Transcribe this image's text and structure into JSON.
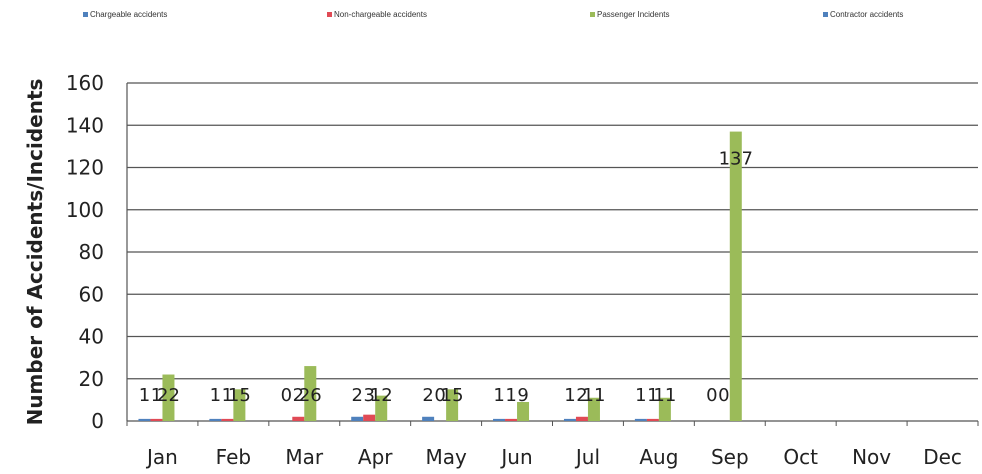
{
  "chart_data": {
    "type": "bar",
    "title": "",
    "xlabel": "",
    "ylabel": "Number of Accidents/Incidents",
    "ylim": [
      0,
      160
    ],
    "yticks": [
      0,
      20,
      40,
      60,
      80,
      100,
      120,
      140,
      160
    ],
    "grid": true,
    "legend_position": "top",
    "categories": [
      "Jan",
      "Feb",
      "Mar",
      "Apr",
      "May",
      "Jun",
      "Jul",
      "Aug",
      "Sep",
      "Oct",
      "Nov",
      "Dec"
    ],
    "series": [
      {
        "name": "Chargeable accidents",
        "color": "#4f81bd",
        "values": [
          1,
          1,
          0,
          2,
          2,
          1,
          1,
          1,
          0,
          null,
          null,
          null
        ],
        "labels": [
          "1",
          "1",
          "0",
          "2",
          "2",
          "1",
          "1",
          "1",
          "0",
          "",
          "",
          ""
        ]
      },
      {
        "name": "Non-chargeable accidents",
        "color": "#e04a55",
        "values": [
          1,
          1,
          2,
          3,
          0,
          1,
          2,
          1,
          0,
          null,
          null,
          null
        ],
        "labels": [
          "1",
          "1",
          "2",
          "3",
          "0",
          "1",
          "2",
          "1",
          "0",
          "",
          "",
          ""
        ]
      },
      {
        "name": "Passenger Incidents",
        "color": "#9bbb59",
        "values": [
          22,
          15,
          26,
          12,
          15,
          9,
          11,
          11,
          137,
          null,
          null,
          null
        ],
        "labels": [
          "22",
          "15",
          "26",
          "12",
          "15",
          "9",
          "11",
          "11",
          "137",
          "",
          "",
          ""
        ]
      },
      {
        "name": "Contractor accidents",
        "color": "#4f81bd",
        "values": [
          null,
          null,
          null,
          null,
          null,
          null,
          null,
          null,
          null,
          null,
          null,
          null
        ],
        "labels": [
          "",
          "",
          "",
          "",
          "",
          "",
          "",
          "",
          "",
          "",
          "",
          ""
        ]
      }
    ]
  }
}
